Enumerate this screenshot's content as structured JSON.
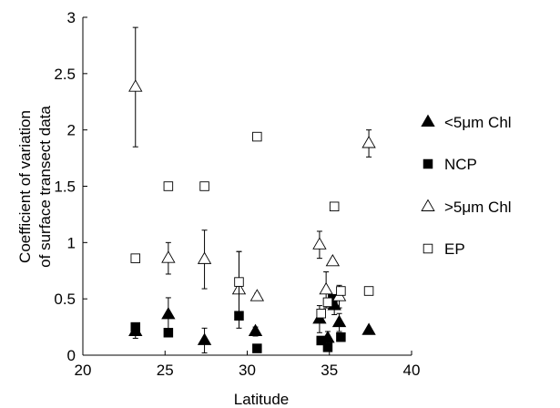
{
  "chart_data": {
    "type": "scatter",
    "title": "",
    "xlabel": "Latitude",
    "ylabel": [
      "Coefficient of variation",
      "of surface transect data"
    ],
    "xlim": [
      20,
      40
    ],
    "ylim": [
      0,
      3
    ],
    "xticks": [
      "20",
      "25",
      "30",
      "35",
      "40"
    ],
    "yticks": [
      "0",
      "0.5",
      "1",
      "1.5",
      "2",
      "2.5",
      "3"
    ],
    "grid": false,
    "legend_position": "right",
    "series": [
      {
        "name": "<5μm Chl",
        "marker": "triangle",
        "filled": true,
        "points": [
          {
            "x": 23.2,
            "y": 0.21,
            "err": 0.06
          },
          {
            "x": 25.2,
            "y": 0.36,
            "err": 0.15
          },
          {
            "x": 27.4,
            "y": 0.13,
            "err": 0.11
          },
          {
            "x": 30.5,
            "y": 0.21,
            "err": 0.04
          },
          {
            "x": 34.4,
            "y": 0.32,
            "err": 0.12
          },
          {
            "x": 34.9,
            "y": 0.15,
            "err": 0.06
          },
          {
            "x": 35.3,
            "y": 0.44,
            "err": 0.08
          },
          {
            "x": 35.6,
            "y": 0.29,
            "err": 0.08
          },
          {
            "x": 37.4,
            "y": 0.22,
            "err": 0.0
          }
        ]
      },
      {
        "name": "NCP",
        "marker": "square",
        "filled": true,
        "points": [
          {
            "x": 23.2,
            "y": 0.25
          },
          {
            "x": 25.2,
            "y": 0.2
          },
          {
            "x": 29.5,
            "y": 0.35
          },
          {
            "x": 30.6,
            "y": 0.06
          },
          {
            "x": 34.5,
            "y": 0.13
          },
          {
            "x": 34.9,
            "y": 0.07
          },
          {
            "x": 35.2,
            "y": 0.5
          },
          {
            "x": 35.7,
            "y": 0.16
          }
        ]
      },
      {
        "name": ">5μm Chl",
        "marker": "triangle",
        "filled": false,
        "points": [
          {
            "x": 23.2,
            "y": 2.38,
            "err": 0.53
          },
          {
            "x": 25.2,
            "y": 0.86,
            "err": 0.14
          },
          {
            "x": 27.4,
            "y": 0.85,
            "err": 0.26
          },
          {
            "x": 29.5,
            "y": 0.58,
            "err": 0.34
          },
          {
            "x": 30.6,
            "y": 0.52,
            "err": 0.03
          },
          {
            "x": 34.4,
            "y": 0.98,
            "err": 0.12
          },
          {
            "x": 34.8,
            "y": 0.58,
            "err": 0.16
          },
          {
            "x": 35.2,
            "y": 0.83,
            "err": 0.0
          },
          {
            "x": 35.6,
            "y": 0.52,
            "err": 0.1
          },
          {
            "x": 37.4,
            "y": 1.88,
            "err": 0.12
          }
        ]
      },
      {
        "name": "EP",
        "marker": "square",
        "filled": false,
        "points": [
          {
            "x": 23.2,
            "y": 0.86
          },
          {
            "x": 25.2,
            "y": 1.5
          },
          {
            "x": 27.4,
            "y": 1.5
          },
          {
            "x": 29.5,
            "y": 0.65,
            "err": 0.27
          },
          {
            "x": 30.6,
            "y": 1.94,
            "err": 0.03
          },
          {
            "x": 34.5,
            "y": 0.37
          },
          {
            "x": 34.9,
            "y": 0.47
          },
          {
            "x": 35.3,
            "y": 1.32
          },
          {
            "x": 35.7,
            "y": 0.57
          },
          {
            "x": 37.4,
            "y": 0.57
          }
        ]
      }
    ]
  }
}
